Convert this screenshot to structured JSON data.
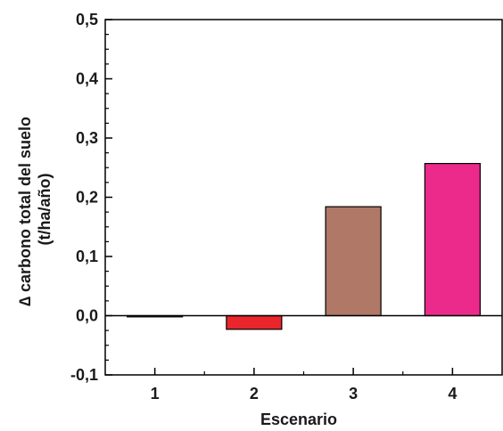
{
  "chart_data": {
    "type": "bar",
    "categories": [
      "1",
      "2",
      "3",
      "4"
    ],
    "values": [
      -0.002,
      -0.023,
      0.184,
      0.257
    ],
    "bar_colors": [
      "#e0e0e0",
      "#e8262c",
      "#b07866",
      "#ec2a8c"
    ],
    "xlabel": "Escenario",
    "ylabel_lines": [
      "∆ carbono total del suelo",
      "(t/ha/año)"
    ],
    "ylim": [
      -0.1,
      0.5
    ],
    "y_ticks": [
      -0.1,
      0.0,
      0.1,
      0.2,
      0.3,
      0.4,
      0.5
    ],
    "y_tick_labels": [
      "-0,1",
      "0,0",
      "0,1",
      "0,2",
      "0,3",
      "0,4",
      "0,5"
    ],
    "grid": false,
    "zero_line": true,
    "legend": "none"
  }
}
